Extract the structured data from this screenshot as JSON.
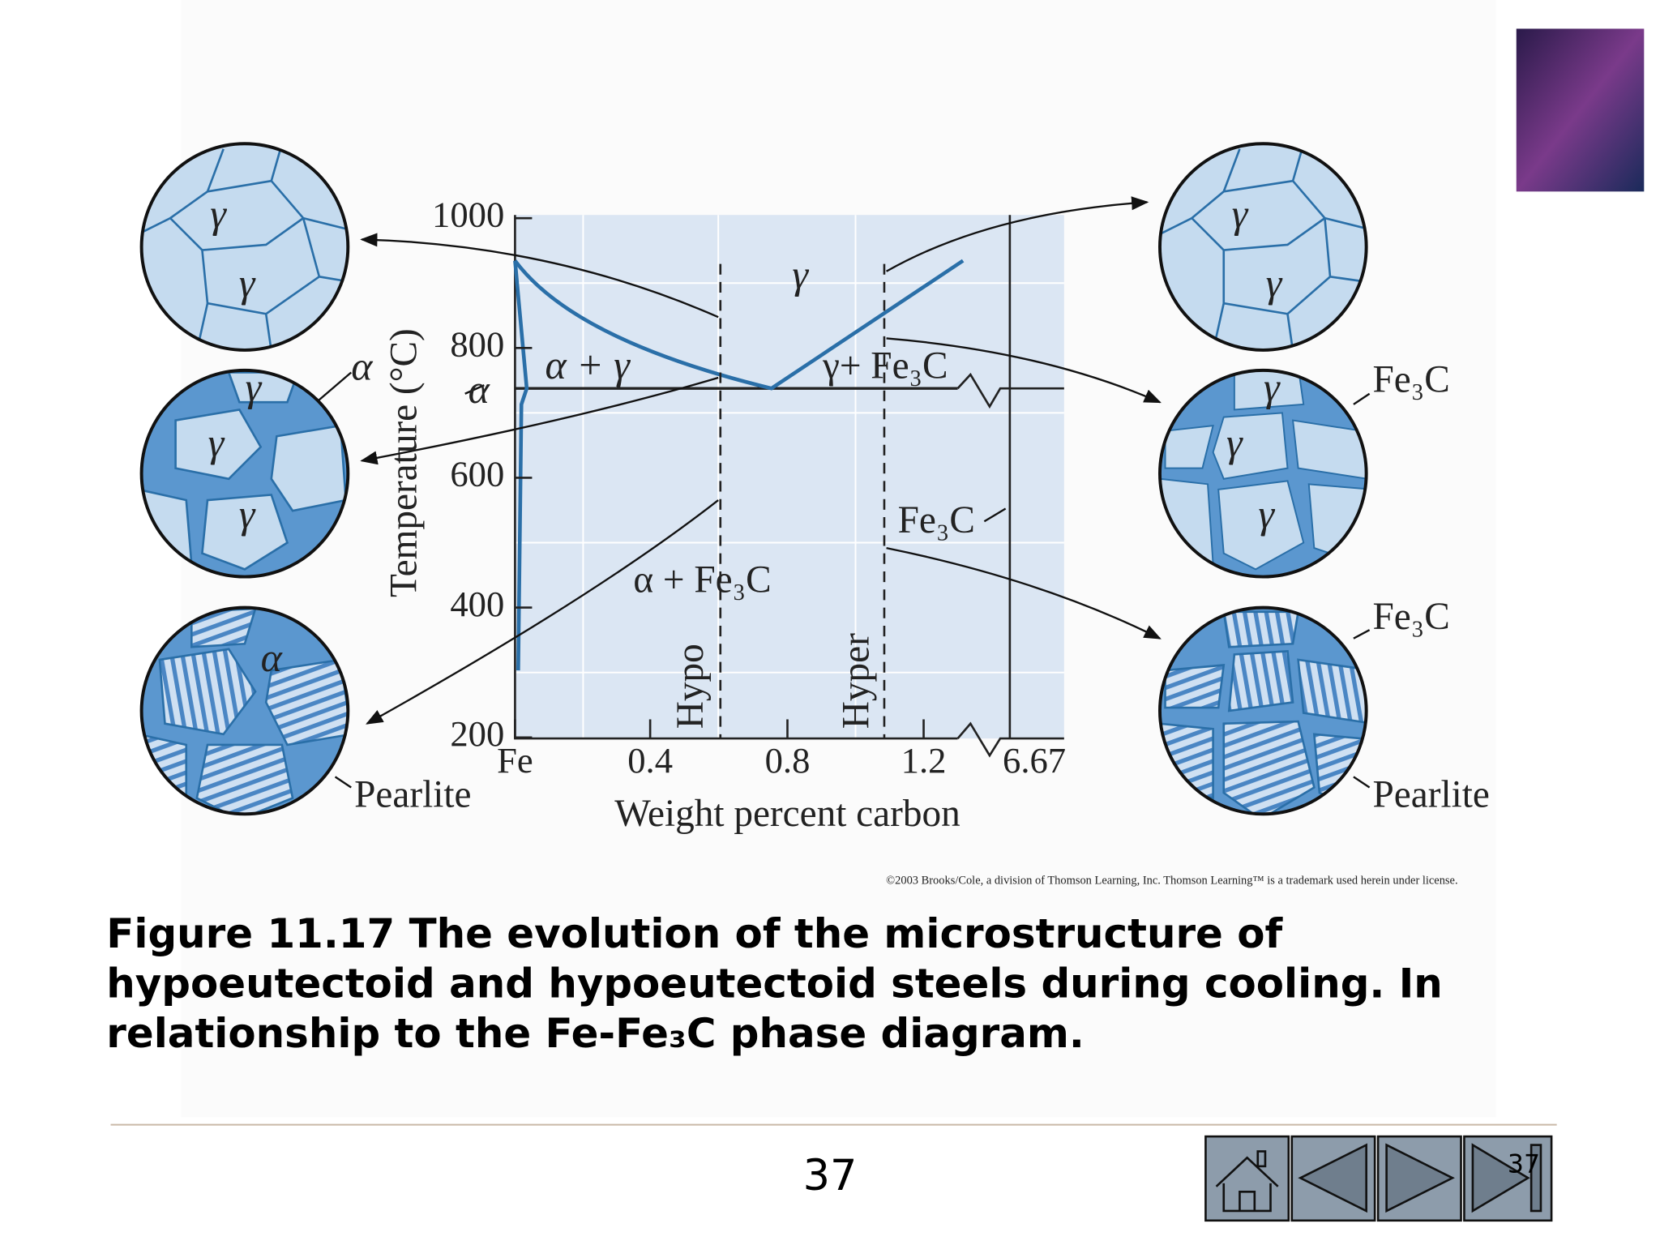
{
  "diagram": {
    "y_axis_label": "Temperature (°C)",
    "x_axis_label": "Weight percent carbon",
    "y_ticks": [
      1000,
      800,
      600,
      400,
      200
    ],
    "x_ticks": [
      "Fe",
      "0.4",
      "0.8",
      "1.2",
      "6.67"
    ],
    "regions": [
      "γ",
      "α + γ",
      "γ+ Fe₃C",
      "α",
      "Fe₃C",
      "α + Fe₃C"
    ],
    "dashed_lines": [
      "Hypo",
      "Hyper"
    ],
    "left_circles": [
      [
        "γ",
        "γ"
      ],
      [
        "γ",
        "γ",
        "γ",
        "α"
      ],
      [
        "α",
        "Pearlite"
      ]
    ],
    "right_circles": [
      [
        "γ",
        "γ"
      ],
      [
        "γ",
        "γ",
        "γ",
        "Fe₃C"
      ],
      [
        "Fe₃C",
        "Pearlite"
      ]
    ]
  },
  "copyright": "©2003 Brooks/Cole, a division of Thomson Learning, Inc.  Thomson Learning™ is a trademark used herein under license.",
  "caption": [
    "Figure 11.17  The evolution of the microstructure of",
    "hypoeutectoid and hypoeutectoid steels during cooling.  In",
    "relationship to the Fe-Fe₃C phase diagram."
  ],
  "page_number": "37",
  "nav_page": "37"
}
